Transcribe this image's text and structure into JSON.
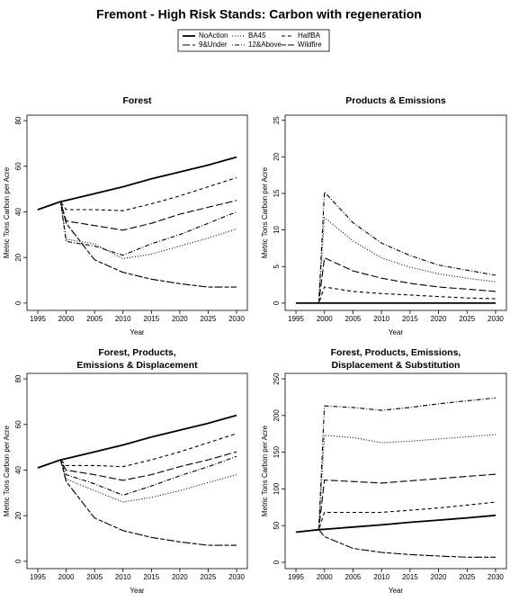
{
  "title": "Fremont  - High Risk Stands: Carbon with regeneration",
  "chart_data": [
    {
      "type": "line",
      "title": [
        "Forest"
      ],
      "x_label": "Year",
      "y_label": "Metric Tons Carbon per Acre",
      "x": [
        1995,
        1999,
        2000,
        2005,
        2010,
        2015,
        2020,
        2025,
        2030
      ],
      "xlim": [
        1993.1,
        2031.9
      ],
      "xticks": [
        1995,
        2000,
        2005,
        2010,
        2015,
        2020,
        2025,
        2030
      ],
      "ylim": [
        -3.2,
        82.4
      ],
      "yticks": [
        0,
        20,
        40,
        60,
        80
      ],
      "series": [
        {
          "name": "NoAction",
          "color": "#000000",
          "dash": "solid",
          "values": [
            41,
            44.5,
            45,
            48,
            51,
            54.5,
            57.5,
            60.5,
            64
          ]
        },
        {
          "name": "BA45",
          "color": "#000000",
          "dash": "dotted",
          "values": [
            41,
            44.5,
            28,
            26,
            19.5,
            21.5,
            25,
            28.5,
            32.5
          ]
        },
        {
          "name": "HalfBA",
          "color": "#000000",
          "dash": "dashed",
          "values": [
            41,
            44.5,
            41,
            41,
            40.5,
            43.5,
            47,
            51,
            55
          ]
        },
        {
          "name": "9&Under",
          "color": "#000000",
          "dash": "longdash",
          "values": [
            41,
            44.5,
            36,
            34,
            32,
            35,
            39,
            42,
            45
          ]
        },
        {
          "name": "12&Above",
          "color": "#000000",
          "dash": "dotdash",
          "values": [
            41,
            44.5,
            27,
            25,
            21,
            26,
            30,
            35,
            40
          ]
        },
        {
          "name": "Wildfire",
          "color": "#000000",
          "dash": "twodash",
          "values": [
            41,
            44.5,
            35,
            19,
            13.5,
            10.5,
            8.5,
            7,
            7
          ]
        }
      ]
    },
    {
      "type": "line",
      "title": [
        "Products & Emissions"
      ],
      "x_label": "Year",
      "y_label": "Metric Tons Carbon per Acre",
      "x": [
        1995,
        1999,
        2000,
        2005,
        2010,
        2015,
        2020,
        2025,
        2030
      ],
      "xlim": [
        1993.1,
        2031.9
      ],
      "xticks": [
        1995,
        2000,
        2005,
        2010,
        2015,
        2020,
        2025,
        2030
      ],
      "ylim": [
        -1,
        25.7
      ],
      "yticks": [
        0,
        5,
        10,
        15,
        20,
        25
      ],
      "series": [
        {
          "name": "NoAction",
          "color": "#000000",
          "dash": "solid",
          "values": [
            0,
            0,
            0,
            0,
            0,
            0,
            0,
            0,
            0
          ]
        },
        {
          "name": "BA45",
          "color": "#000000",
          "dash": "dotted",
          "values": [
            0,
            0,
            11.7,
            8.5,
            6.2,
            4.9,
            4,
            3.4,
            2.9
          ]
        },
        {
          "name": "HalfBA",
          "color": "#000000",
          "dash": "dashed",
          "values": [
            0,
            0,
            2.2,
            1.6,
            1.3,
            1.1,
            0.9,
            0.7,
            0.6
          ]
        },
        {
          "name": "9&Under",
          "color": "#000000",
          "dash": "longdash",
          "values": [
            0,
            0,
            6.2,
            4.4,
            3.4,
            2.7,
            2.2,
            1.9,
            1.6
          ]
        },
        {
          "name": "12&Above",
          "color": "#000000",
          "dash": "dotdash",
          "values": [
            0,
            0,
            15.2,
            11,
            8.2,
            6.5,
            5.2,
            4.5,
            3.8
          ]
        },
        {
          "name": "Wildfire",
          "color": "#000000",
          "dash": "twodash",
          "values": [
            0,
            0,
            0,
            0,
            0,
            0,
            0,
            0,
            0
          ]
        }
      ]
    },
    {
      "type": "line",
      "title": [
        "Forest, Products,",
        "Emissions & Displacement"
      ],
      "x_label": "Year",
      "y_label": "Metric Tons Carbon per Acre",
      "x": [
        1995,
        1999,
        2000,
        2005,
        2010,
        2015,
        2020,
        2025,
        2030
      ],
      "xlim": [
        1993.1,
        2031.9
      ],
      "xticks": [
        1995,
        2000,
        2005,
        2010,
        2015,
        2020,
        2025,
        2030
      ],
      "ylim": [
        -3.2,
        82.4
      ],
      "yticks": [
        0,
        20,
        40,
        60,
        80
      ],
      "series": [
        {
          "name": "NoAction",
          "color": "#000000",
          "dash": "solid",
          "values": [
            41,
            44.5,
            45,
            48,
            51,
            54.5,
            57.5,
            60.5,
            64
          ]
        },
        {
          "name": "BA45",
          "color": "#000000",
          "dash": "dotted",
          "values": [
            41,
            44.5,
            36,
            31,
            26,
            28,
            31,
            34.5,
            38
          ]
        },
        {
          "name": "HalfBA",
          "color": "#000000",
          "dash": "dashed",
          "values": [
            41,
            44.5,
            42,
            42,
            41.5,
            44.5,
            48,
            52,
            56
          ]
        },
        {
          "name": "9&Under",
          "color": "#000000",
          "dash": "longdash",
          "values": [
            41,
            44.5,
            40,
            38,
            35.5,
            38,
            41.5,
            44.5,
            48
          ]
        },
        {
          "name": "12&Above",
          "color": "#000000",
          "dash": "dotdash",
          "values": [
            41,
            44.5,
            38,
            34,
            29,
            33,
            37.5,
            41.5,
            46
          ]
        },
        {
          "name": "Wildfire",
          "color": "#000000",
          "dash": "twodash",
          "values": [
            41,
            44.5,
            35,
            19,
            13.5,
            10.5,
            8.5,
            7,
            7
          ]
        }
      ]
    },
    {
      "type": "line",
      "title": [
        "Forest, Products, Emissions,",
        "Displacement & Substitution"
      ],
      "x_label": "Year",
      "y_label": "Metric Tons Carbon per Acre",
      "x": [
        1995,
        1999,
        2000,
        2005,
        2010,
        2015,
        2020,
        2025,
        2030
      ],
      "xlim": [
        1993.1,
        2031.9
      ],
      "xticks": [
        1995,
        2000,
        2005,
        2010,
        2015,
        2020,
        2025,
        2030
      ],
      "ylim": [
        -8.6,
        257.4
      ],
      "yticks": [
        0,
        50,
        100,
        150,
        200,
        250
      ],
      "series": [
        {
          "name": "NoAction",
          "color": "#000000",
          "dash": "solid",
          "values": [
            41,
            44.5,
            45,
            48,
            51,
            54.5,
            57.5,
            60.5,
            64
          ]
        },
        {
          "name": "BA45",
          "color": "#000000",
          "dash": "dotted",
          "values": [
            41,
            44.5,
            173,
            170,
            163,
            165,
            168,
            171,
            174
          ]
        },
        {
          "name": "HalfBA",
          "color": "#000000",
          "dash": "dashed",
          "values": [
            41,
            44.5,
            68,
            68,
            68,
            71,
            74,
            78,
            82
          ]
        },
        {
          "name": "9&Under",
          "color": "#000000",
          "dash": "longdash",
          "values": [
            41,
            44.5,
            112,
            110,
            108,
            111,
            114,
            117,
            120
          ]
        },
        {
          "name": "12&Above",
          "color": "#000000",
          "dash": "dotdash",
          "values": [
            41,
            44.5,
            213,
            211,
            207,
            211,
            216,
            220,
            224
          ]
        },
        {
          "name": "Wildfire",
          "color": "#000000",
          "dash": "twodash",
          "values": [
            41,
            44.5,
            35,
            19,
            13.5,
            10.5,
            8.5,
            7,
            7
          ]
        }
      ]
    }
  ]
}
